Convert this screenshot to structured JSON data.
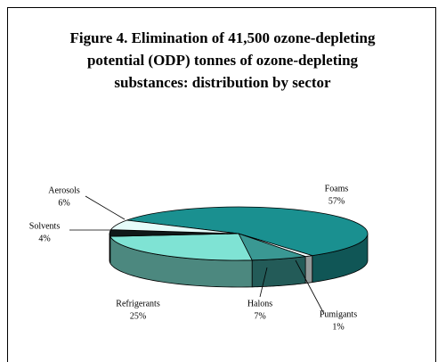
{
  "chart_data": {
    "type": "pie",
    "title": "Figure 4.  Elimination of 41,500 ozone-depleting potential (ODP) tonnes of ozone-depleting substances: distribution by sector",
    "categories": [
      "Foams",
      "Fumigants",
      "Halons",
      "Refrigerants",
      "Solvents",
      "Aerosols"
    ],
    "values": [
      57,
      1,
      7,
      25,
      4,
      6
    ],
    "value_labels": [
      "57%",
      "1%",
      "7%",
      "25%",
      "4%",
      "6%"
    ],
    "colors": [
      "#1a9090",
      "#f4ffff",
      "#3a9893",
      "#7fe3d4",
      "#101818",
      "#e6fcfa"
    ]
  }
}
